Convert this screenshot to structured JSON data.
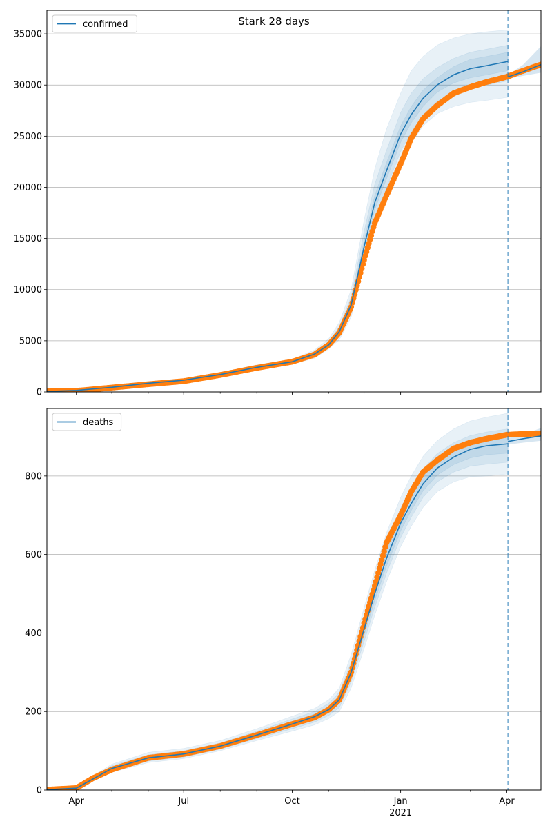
{
  "figure": {
    "title": "Stark 28 days"
  },
  "colors": {
    "model": "#1f77b4",
    "observed": "#ff7f0e",
    "grid": "#b0b0b0",
    "band": "#1f77b4"
  },
  "x_axis": {
    "start": "2020-03-07",
    "end": "2021-04-30",
    "major_ticks": [
      {
        "date": "2020-04-01",
        "label": "Apr",
        "sublabel": ""
      },
      {
        "date": "2020-07-01",
        "label": "Jul",
        "sublabel": ""
      },
      {
        "date": "2020-10-01",
        "label": "Oct",
        "sublabel": ""
      },
      {
        "date": "2021-01-01",
        "label": "Jan",
        "sublabel": "2021"
      },
      {
        "date": "2021-04-01",
        "label": "Apr",
        "sublabel": ""
      }
    ],
    "forecast_date": "2021-04-02"
  },
  "chart_data": [
    {
      "type": "line",
      "legend": "confirmed",
      "legend_position": "top-left",
      "ylim": [
        0,
        37300
      ],
      "yticks": [
        0,
        5000,
        10000,
        15000,
        20000,
        25000,
        30000,
        35000
      ],
      "grid": true,
      "model": {
        "x": [
          "2020-03-07",
          "2020-04-01",
          "2020-05-01",
          "2020-06-01",
          "2020-07-01",
          "2020-08-01",
          "2020-09-01",
          "2020-10-01",
          "2020-10-20",
          "2020-11-01",
          "2020-11-10",
          "2020-11-20",
          "2020-12-01",
          "2020-12-10",
          "2020-12-20",
          "2021-01-01",
          "2021-01-10",
          "2021-01-20",
          "2021-02-01",
          "2021-02-15",
          "2021-03-01",
          "2021-03-15",
          "2021-04-02"
        ],
        "y": [
          50,
          150,
          450,
          850,
          1150,
          1700,
          2400,
          2950,
          3700,
          4600,
          5900,
          8500,
          14200,
          18500,
          21600,
          25200,
          27100,
          28700,
          30000,
          31000,
          31600,
          31900,
          32300
        ],
        "bands": [
          {
            "lower": [
              30,
              110,
              360,
              720,
              1000,
              1500,
              2150,
              2700,
              3300,
              4200,
              5100,
              7300,
              12300,
              16000,
              18800,
              22300,
              24300,
              26000,
              27200,
              27900,
              28300,
              28500,
              28800
            ],
            "upper": [
              70,
              190,
              540,
              980,
              1300,
              1900,
              2650,
              3200,
              4100,
              5200,
              6800,
              10000,
              16800,
              21800,
              25700,
              29200,
              31400,
              32800,
              33900,
              34600,
              35000,
              35200,
              35400
            ]
          },
          {
            "lower": [
              35,
              120,
              390,
              760,
              1040,
              1560,
              2230,
              2780,
              3450,
              4350,
              5400,
              7800,
              13000,
              17000,
              19900,
              23500,
              25400,
              27100,
              28400,
              29200,
              29700,
              30000,
              30400
            ],
            "upper": [
              65,
              180,
              510,
              940,
              1260,
              1840,
              2570,
              3120,
              3950,
              4900,
              6400,
              9300,
              15700,
              20300,
              23600,
              27300,
              29200,
              30600,
              31700,
              32600,
              33200,
              33500,
              33900
            ]
          },
          {
            "lower": [
              42,
              135,
              420,
              800,
              1090,
              1620,
              2310,
              2860,
              3580,
              4480,
              5700,
              8200,
              13600,
              17800,
              20800,
              24400,
              26300,
              27900,
              29300,
              30200,
              30700,
              31000,
              31400
            ],
            "upper": [
              58,
              165,
              480,
              900,
              1210,
              1780,
              2490,
              3040,
              3820,
              4720,
              6100,
              8800,
              14800,
              19200,
              22400,
              26000,
              27900,
              29500,
              30700,
              31800,
              32500,
              32800,
              33200
            ]
          }
        ]
      },
      "observed": {
        "x": [
          "2020-03-07",
          "2020-04-01",
          "2020-05-01",
          "2020-06-01",
          "2020-07-01",
          "2020-08-01",
          "2020-09-01",
          "2020-10-01",
          "2020-10-20",
          "2020-11-01",
          "2020-11-10",
          "2020-11-20",
          "2020-12-01",
          "2020-12-10",
          "2020-12-20",
          "2021-01-01",
          "2021-01-10",
          "2021-01-20",
          "2021-02-01",
          "2021-02-15",
          "2021-03-01",
          "2021-03-15",
          "2021-04-01",
          "2021-04-15",
          "2021-04-30"
        ],
        "y": [
          50,
          100,
          420,
          750,
          1050,
          1650,
          2350,
          2950,
          3650,
          4600,
          5800,
          8300,
          12900,
          16500,
          19200,
          22300,
          24800,
          26700,
          28000,
          29200,
          29800,
          30300,
          30800,
          31400,
          32000
        ]
      },
      "forecast": {
        "x": [
          "2021-04-02",
          "2021-04-15",
          "2021-04-30"
        ],
        "y": [
          30800,
          31300,
          32000
        ],
        "lower": [
          30600,
          30900,
          31200
        ],
        "upper": [
          31000,
          32000,
          33800
        ]
      }
    },
    {
      "type": "line",
      "legend": "deaths",
      "legend_position": "top-left",
      "ylim": [
        0,
        972
      ],
      "yticks": [
        0,
        200,
        400,
        600,
        800
      ],
      "grid": true,
      "model": {
        "x": [
          "2020-03-07",
          "2020-04-01",
          "2020-04-15",
          "2020-05-01",
          "2020-06-01",
          "2020-07-01",
          "2020-08-01",
          "2020-09-01",
          "2020-10-01",
          "2020-10-20",
          "2020-11-01",
          "2020-11-10",
          "2020-11-20",
          "2020-12-01",
          "2020-12-10",
          "2020-12-20",
          "2021-01-01",
          "2021-01-10",
          "2021-01-20",
          "2021-02-01",
          "2021-02-15",
          "2021-03-01",
          "2021-03-15",
          "2021-04-02"
        ],
        "y": [
          1,
          5,
          28,
          55,
          82,
          92,
          112,
          140,
          168,
          187,
          205,
          230,
          300,
          410,
          500,
          590,
          680,
          730,
          780,
          820,
          848,
          868,
          877,
          882
        ],
        "bands": [
          {
            "lower": [
              0,
              2,
              22,
              45,
              70,
              80,
              100,
              126,
              150,
              166,
              182,
              200,
              260,
              360,
              445,
              530,
              620,
              672,
              720,
              760,
              785,
              798,
              800,
              805
            ],
            "upper": [
              2,
              10,
              36,
              66,
              96,
              106,
              126,
              156,
              188,
              208,
              230,
              260,
              345,
              465,
              560,
              655,
              745,
              800,
              850,
              890,
              920,
              940,
              950,
              960
            ]
          },
          {
            "lower": [
              0,
              3,
              24,
              48,
              74,
              84,
              104,
              131,
              156,
              173,
              190,
              210,
              275,
              378,
              465,
              552,
              643,
              695,
              745,
              785,
              810,
              825,
              830,
              835
            ],
            "upper": [
              2,
              8,
              33,
              62,
              90,
              100,
              120,
              150,
              181,
              200,
              221,
              249,
              327,
              444,
              537,
              630,
              718,
              767,
              817,
              857,
              885,
              903,
              912,
              920
            ]
          },
          {
            "lower": [
              1,
              4,
              26,
              52,
              78,
              88,
              108,
              135,
              162,
              180,
              198,
              220,
              287,
              394,
              482,
              570,
              660,
              712,
              762,
              802,
              829,
              846,
              854,
              858
            ],
            "upper": [
              1,
              6,
              30,
              58,
              86,
              96,
              116,
              145,
              174,
              194,
              212,
              240,
              313,
              426,
              518,
              610,
              700,
              748,
              798,
              838,
              867,
              890,
              900,
              906
            ]
          }
        ]
      },
      "observed": {
        "x": [
          "2020-03-07",
          "2020-04-01",
          "2020-04-15",
          "2020-05-01",
          "2020-06-01",
          "2020-07-01",
          "2020-08-01",
          "2020-09-01",
          "2020-10-01",
          "2020-10-20",
          "2020-11-01",
          "2020-11-10",
          "2020-11-20",
          "2020-12-01",
          "2020-12-10",
          "2020-12-20",
          "2021-01-01",
          "2021-01-10",
          "2021-01-20",
          "2021-02-01",
          "2021-02-15",
          "2021-03-01",
          "2021-03-15",
          "2021-04-01",
          "2021-04-15",
          "2021-04-30"
        ],
        "y": [
          1,
          5,
          30,
          52,
          82,
          92,
          112,
          140,
          168,
          185,
          205,
          230,
          300,
          425,
          520,
          630,
          700,
          760,
          810,
          840,
          870,
          885,
          895,
          905,
          907,
          908
        ]
      },
      "forecast": {
        "x": [
          "2021-04-02",
          "2021-04-15",
          "2021-04-30"
        ],
        "y": [
          888,
          895,
          902
        ],
        "lower": [
          880,
          885,
          890
        ],
        "upper": [
          896,
          906,
          922
        ]
      }
    }
  ]
}
